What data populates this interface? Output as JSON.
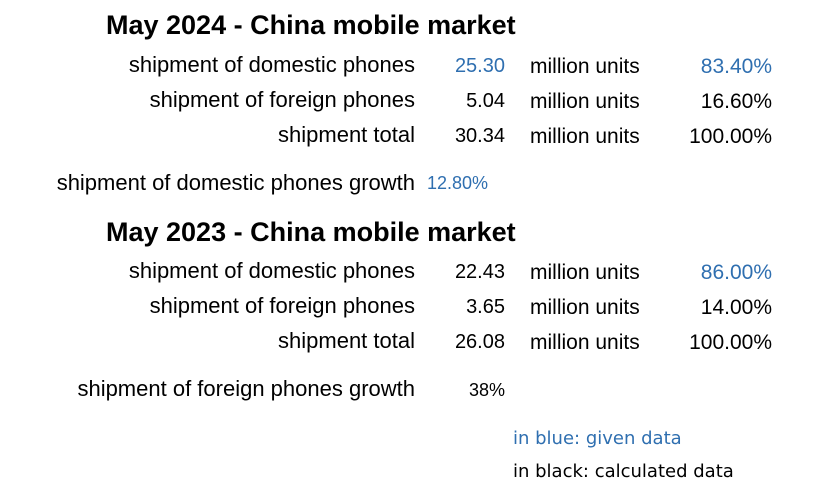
{
  "colors": {
    "given": "#2f6fb0",
    "calculated": "#000000"
  },
  "section_2024": {
    "title": "May 2024 - China mobile market",
    "rows": [
      {
        "label": "shipment of domestic phones",
        "value": "25.30",
        "unit": "million units",
        "percent": "83.40%"
      },
      {
        "label": "shipment of foreign phones",
        "value": "5.04",
        "unit": "million units",
        "percent": "16.60%"
      },
      {
        "label": "shipment total",
        "value": "30.34",
        "unit": "million units",
        "percent": "100.00%"
      }
    ],
    "growth": {
      "label": "shipment of domestic phones growth",
      "value": "12.80%"
    }
  },
  "section_2023": {
    "title": "May 2023 - China mobile market",
    "rows": [
      {
        "label": "shipment of domestic phones",
        "value": "22.43",
        "unit": "million units",
        "percent": "86.00%"
      },
      {
        "label": "shipment of foreign phones",
        "value": "3.65",
        "unit": "million units",
        "percent": "14.00%"
      },
      {
        "label": "shipment total",
        "value": "26.08",
        "unit": "million units",
        "percent": "100.00%"
      }
    ],
    "growth": {
      "label": "shipment of foreign phones growth",
      "value": "38%"
    }
  },
  "legend": {
    "given": "in blue: given data",
    "calculated": "in black: calculated data"
  }
}
